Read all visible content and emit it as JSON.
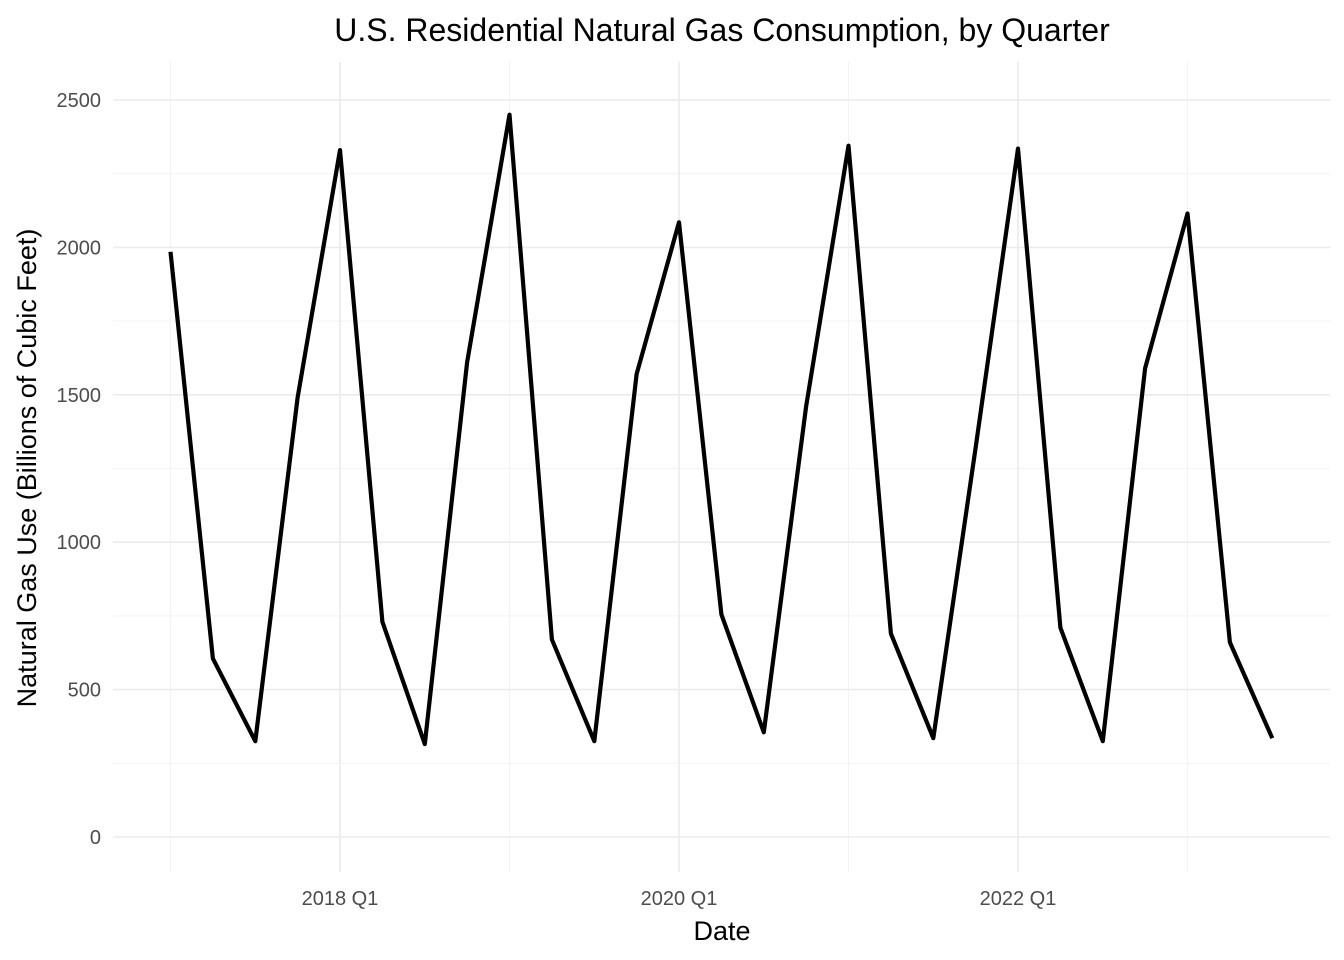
{
  "chart_data": {
    "type": "line",
    "title": "U.S. Residential Natural Gas Consumption, by Quarter",
    "xlabel": "Date",
    "ylabel": "Natural Gas Use (Billions of Cubic Feet)",
    "x_ticks": [
      "2018 Q1",
      "2020 Q1",
      "2022 Q1"
    ],
    "y_ticks": [
      0,
      500,
      1000,
      1500,
      2000,
      2500
    ],
    "ylim": [
      -110,
      2610
    ],
    "xlim": [
      "2016 Q4",
      "2023 Q4"
    ],
    "grid": true,
    "legend": "none",
    "x": [
      "2017 Q1",
      "2017 Q2",
      "2017 Q3",
      "2017 Q4",
      "2018 Q1",
      "2018 Q2",
      "2018 Q3",
      "2018 Q4",
      "2019 Q1",
      "2019 Q2",
      "2019 Q3",
      "2019 Q4",
      "2020 Q1",
      "2020 Q2",
      "2020 Q3",
      "2020 Q4",
      "2021 Q1",
      "2021 Q2",
      "2021 Q3",
      "2021 Q4",
      "2022 Q1",
      "2022 Q2",
      "2022 Q3",
      "2022 Q4",
      "2023 Q1",
      "2023 Q2",
      "2023 Q3"
    ],
    "series": [
      {
        "values": [
          1985,
          605,
          325,
          1490,
          2330,
          730,
          315,
          1610,
          2450,
          670,
          325,
          1570,
          2085,
          755,
          355,
          1460,
          2345,
          690,
          335,
          1320,
          2335,
          710,
          325,
          1590,
          2115,
          660,
          335
        ],
        "color": "#000000"
      }
    ]
  }
}
